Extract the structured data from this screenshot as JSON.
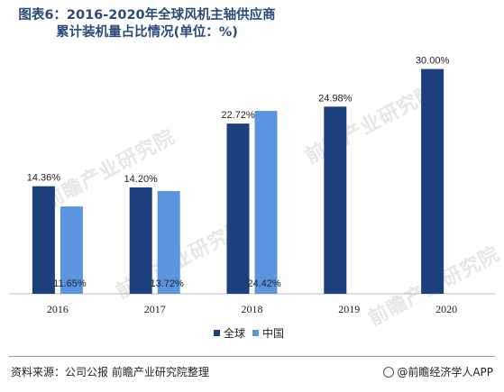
{
  "title": "图表6：2016-2020年全球风机主轴供应商累计装机量占比情况(单位：%)",
  "watermark": "前瞻产业研究院",
  "source": "资料来源：公司公报 前瞻产业研究院整理",
  "brand": "@前瞻经济学人APP",
  "colors": {
    "global": "#1c3f7e",
    "china": "#5b94df",
    "axis": "#bdbdbd",
    "text": "#222222"
  },
  "chart_data": {
    "type": "bar",
    "categories": [
      "2016",
      "2017",
      "2018",
      "2019",
      "2020"
    ],
    "series": [
      {
        "name": "全球",
        "values": [
          14.36,
          14.2,
          22.72,
          24.98,
          30.0
        ],
        "labels": [
          "14.36%",
          "14.20%",
          "22.72%",
          "24.98%",
          "30.00%"
        ]
      },
      {
        "name": "中国",
        "values": [
          11.65,
          13.72,
          24.42,
          null,
          null
        ],
        "labels": [
          "11.65%",
          "13.72%",
          "24.42%",
          "",
          ""
        ]
      }
    ],
    "ylim": [
      0,
      32
    ],
    "grid": false,
    "legend": "bottom-center"
  }
}
